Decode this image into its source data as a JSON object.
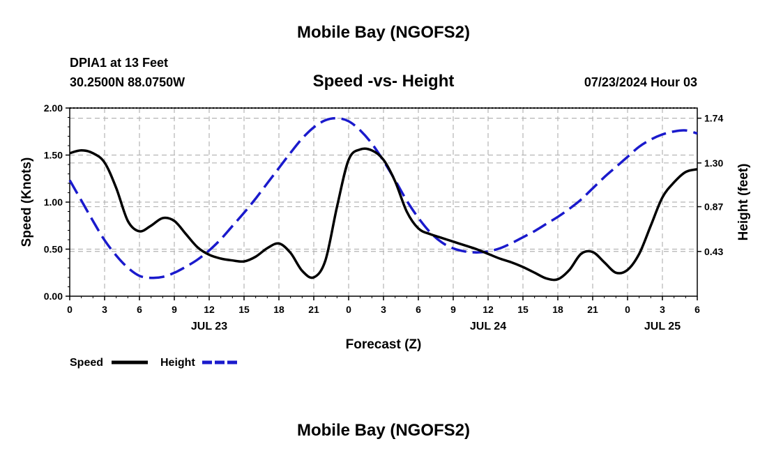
{
  "page": {
    "title_top": "Mobile Bay (NGOFS2)",
    "title_bottom": "Mobile Bay (NGOFS2)"
  },
  "header": {
    "station": "DPIA1 at 13 Feet",
    "coords": "30.2500N  88.0750W",
    "plot_title": "Speed -vs- Height",
    "timestamp": "07/23/2024 Hour 03"
  },
  "colors": {
    "speed": "#000000",
    "height": "#1a1acc",
    "grid": "#b4b4b4"
  },
  "chart_data": {
    "type": "line",
    "title": "Speed -vs- Height",
    "xlabel": "Forecast (Z)",
    "ylabel_left": "Speed (Knots)",
    "ylabel_right": "Height (feet)",
    "x_range_hours": [
      0,
      54
    ],
    "x_ticks": [
      {
        "h": 0,
        "label": "0"
      },
      {
        "h": 3,
        "label": "3"
      },
      {
        "h": 6,
        "label": "6"
      },
      {
        "h": 9,
        "label": "9"
      },
      {
        "h": 12,
        "label": "12"
      },
      {
        "h": 15,
        "label": "15"
      },
      {
        "h": 18,
        "label": "18"
      },
      {
        "h": 21,
        "label": "21"
      },
      {
        "h": 24,
        "label": "0"
      },
      {
        "h": 27,
        "label": "3"
      },
      {
        "h": 30,
        "label": "6"
      },
      {
        "h": 33,
        "label": "9"
      },
      {
        "h": 36,
        "label": "12"
      },
      {
        "h": 39,
        "label": "15"
      },
      {
        "h": 42,
        "label": "18"
      },
      {
        "h": 45,
        "label": "21"
      },
      {
        "h": 48,
        "label": "0"
      },
      {
        "h": 51,
        "label": "3"
      },
      {
        "h": 54,
        "label": "6"
      }
    ],
    "day_labels": [
      {
        "h": 12,
        "label": "JUL 23"
      },
      {
        "h": 36,
        "label": "JUL 24"
      },
      {
        "h": 51,
        "label": "JUL 25"
      }
    ],
    "y_left": {
      "range": [
        0,
        2.0
      ],
      "ticks": [
        "0.00",
        "0.50",
        "1.00",
        "1.50",
        "2.00"
      ]
    },
    "y_right": {
      "range": [
        -0.01,
        1.84
      ],
      "ticks": [
        "0.43",
        "0.87",
        "1.30",
        "1.74"
      ]
    },
    "legend": {
      "placement": "bottom-left",
      "items": [
        "Speed",
        "Height"
      ]
    },
    "series": [
      {
        "name": "Speed",
        "axis": "left",
        "style": "solid",
        "color": "#000000",
        "x": [
          0,
          1,
          2,
          3,
          4,
          5,
          6,
          7,
          8,
          9,
          10,
          11,
          12,
          13,
          14,
          15,
          16,
          17,
          18,
          19,
          20,
          21,
          22,
          23,
          24,
          25,
          26,
          27,
          28,
          29,
          30,
          31,
          32,
          33,
          34,
          35,
          36,
          37,
          38,
          39,
          40,
          41,
          42,
          43,
          44,
          45,
          46,
          47,
          48,
          49,
          50,
          51,
          52,
          53,
          54
        ],
        "values": [
          1.52,
          1.55,
          1.52,
          1.42,
          1.15,
          0.8,
          0.69,
          0.75,
          0.83,
          0.8,
          0.66,
          0.52,
          0.44,
          0.4,
          0.38,
          0.37,
          0.42,
          0.51,
          0.56,
          0.46,
          0.27,
          0.2,
          0.38,
          0.95,
          1.45,
          1.56,
          1.55,
          1.45,
          1.22,
          0.9,
          0.72,
          0.66,
          0.62,
          0.58,
          0.54,
          0.5,
          0.45,
          0.4,
          0.36,
          0.31,
          0.25,
          0.19,
          0.18,
          0.28,
          0.45,
          0.47,
          0.36,
          0.25,
          0.28,
          0.45,
          0.75,
          1.05,
          1.21,
          1.32,
          1.35
        ]
      },
      {
        "name": "Height",
        "axis": "right",
        "style": "dashed",
        "color": "#1a1acc",
        "x": [
          0,
          1,
          2,
          3,
          4,
          5,
          6,
          7,
          8,
          9,
          10,
          11,
          12,
          13,
          14,
          15,
          16,
          17,
          18,
          19,
          20,
          21,
          22,
          23,
          24,
          25,
          26,
          27,
          28,
          29,
          30,
          31,
          32,
          33,
          34,
          35,
          36,
          37,
          38,
          39,
          40,
          41,
          42,
          43,
          44,
          45,
          46,
          47,
          48,
          49,
          50,
          51,
          52,
          53,
          54
        ],
        "values": [
          1.13,
          0.93,
          0.73,
          0.54,
          0.39,
          0.27,
          0.19,
          0.17,
          0.18,
          0.22,
          0.28,
          0.35,
          0.44,
          0.55,
          0.68,
          0.81,
          0.95,
          1.1,
          1.25,
          1.4,
          1.54,
          1.65,
          1.72,
          1.74,
          1.71,
          1.62,
          1.49,
          1.32,
          1.13,
          0.93,
          0.76,
          0.62,
          0.52,
          0.46,
          0.43,
          0.42,
          0.43,
          0.46,
          0.51,
          0.57,
          0.63,
          0.7,
          0.77,
          0.85,
          0.94,
          1.05,
          1.16,
          1.26,
          1.36,
          1.46,
          1.53,
          1.58,
          1.61,
          1.62,
          1.59
        ]
      }
    ]
  }
}
